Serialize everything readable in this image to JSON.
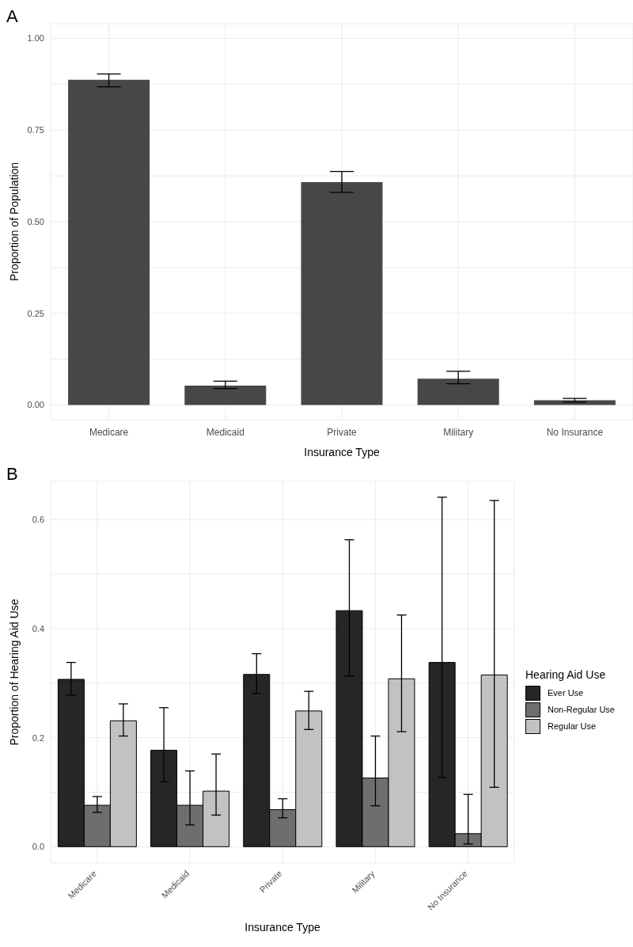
{
  "chart_data": [
    {
      "type": "bar",
      "annotations": [
        "A"
      ],
      "xlabel": "Insurance Type",
      "ylabel": "Proportion of Population",
      "categories": [
        "Medicare",
        "Medicaid",
        "Private",
        "Military",
        "No Insurance"
      ],
      "series": [
        {
          "color": "#474747",
          "values": [
            0.887,
            0.053,
            0.608,
            0.072,
            0.013
          ],
          "errors": [
            [
              0.868,
              0.903
            ],
            [
              0.045,
              0.065
            ],
            [
              0.58,
              0.637
            ],
            [
              0.058,
              0.092
            ],
            [
              0.008,
              0.018
            ]
          ]
        }
      ],
      "ylim": [
        -0.04,
        1.04
      ],
      "yticks": [
        {
          "value": 0,
          "label": "0.00"
        },
        {
          "value": 0.125,
          "label": null
        },
        {
          "value": 0.25,
          "label": "0.25"
        },
        {
          "value": 0.375,
          "label": null
        },
        {
          "value": 0.5,
          "label": "0.50"
        },
        {
          "value": 0.625,
          "label": null
        },
        {
          "value": 0.75,
          "label": "0.75"
        },
        {
          "value": 0.875,
          "label": null
        },
        {
          "value": 1,
          "label": "1.00"
        }
      ],
      "grid": true
    },
    {
      "type": "bar",
      "annotations": [
        "B"
      ],
      "xlabel": "Insurance Type",
      "ylabel": "Proportion of Hearing Aid Use",
      "legend_title": "Hearing Aid Use",
      "legend": "right",
      "categories": [
        "Medicare",
        "Medicaid",
        "Private",
        "Military",
        "No Insurance"
      ],
      "series": [
        {
          "name": "Ever Use",
          "color": "#262626",
          "values": [
            0.307,
            0.177,
            0.316,
            0.433,
            0.338
          ],
          "errors": [
            [
              0.278,
              0.338
            ],
            [
              0.119,
              0.255
            ],
            [
              0.281,
              0.354
            ],
            [
              0.313,
              0.563
            ],
            [
              0.127,
              0.641
            ]
          ]
        },
        {
          "name": "Non-Regular Use",
          "color": "#6e6e6e",
          "values": [
            0.076,
            0.076,
            0.068,
            0.126,
            0.024
          ],
          "errors": [
            [
              0.063,
              0.092
            ],
            [
              0.04,
              0.139
            ],
            [
              0.053,
              0.088
            ],
            [
              0.075,
              0.203
            ],
            [
              0.005,
              0.096
            ]
          ]
        },
        {
          "name": "Regular Use",
          "color": "#c2c2c2",
          "values": [
            0.231,
            0.102,
            0.249,
            0.308,
            0.315
          ],
          "errors": [
            [
              0.203,
              0.262
            ],
            [
              0.058,
              0.17
            ],
            [
              0.215,
              0.285
            ],
            [
              0.211,
              0.425
            ],
            [
              0.109,
              0.635
            ]
          ]
        }
      ],
      "ylim": [
        -0.03,
        0.67
      ],
      "yticks": [
        {
          "value": 0,
          "label": "0.0"
        },
        {
          "value": 0.1,
          "label": null
        },
        {
          "value": 0.2,
          "label": "0.2"
        },
        {
          "value": 0.3,
          "label": null
        },
        {
          "value": 0.4,
          "label": "0.4"
        },
        {
          "value": 0.5,
          "label": null
        },
        {
          "value": 0.6,
          "label": "0.6"
        }
      ],
      "grid": true
    }
  ]
}
